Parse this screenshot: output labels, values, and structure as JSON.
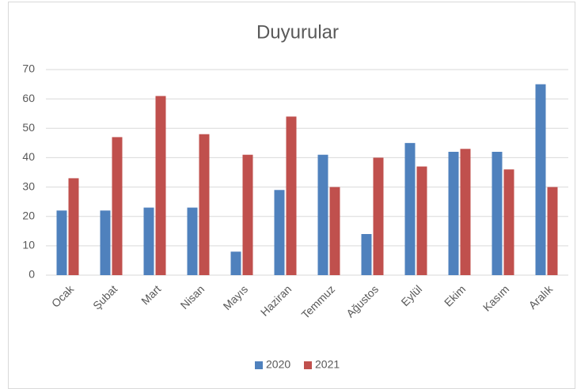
{
  "chart_data": {
    "type": "bar",
    "title": "Duyurular",
    "categories": [
      "Ocak",
      "Şubat",
      "Mart",
      "Nisan",
      "Mayıs",
      "Haziran",
      "Temmuz",
      "Ağustos",
      "Eylül",
      "Ekim",
      "Kasım",
      "Aralık"
    ],
    "series": [
      {
        "name": "2020",
        "color": "#4f81bd",
        "values": [
          22,
          22,
          23,
          23,
          8,
          29,
          41,
          14,
          45,
          42,
          42,
          65
        ]
      },
      {
        "name": "2021",
        "color": "#c0504d",
        "values": [
          33,
          47,
          61,
          48,
          41,
          54,
          30,
          40,
          37,
          43,
          36,
          30
        ]
      }
    ],
    "ylim": [
      0,
      70
    ],
    "yticks": [
      0,
      10,
      20,
      30,
      40,
      50,
      60,
      70
    ],
    "grid": true,
    "legend": "bottom"
  }
}
